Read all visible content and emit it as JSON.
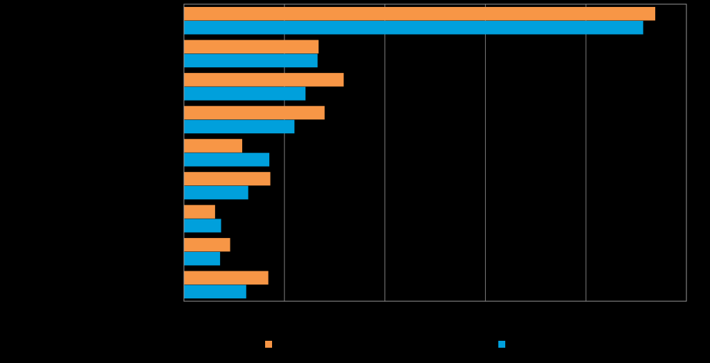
{
  "chart_data": {
    "type": "bar",
    "orientation": "horizontal",
    "title": "",
    "xlabel": "",
    "ylabel": "",
    "categories": [
      "",
      "",
      "",
      "",
      "",
      "",
      "",
      "",
      ""
    ],
    "xlim": [
      0,
      5
    ],
    "grid": true,
    "legend_position": "bottom",
    "series": [
      {
        "values": [
          4.69,
          1.34,
          1.59,
          1.4,
          0.58,
          0.86,
          0.31,
          0.46,
          0.84
        ],
        "color": "#F79646"
      },
      {
        "values": [
          4.57,
          1.33,
          1.21,
          1.1,
          0.85,
          0.64,
          0.37,
          0.36,
          0.62
        ],
        "color": "#00A0DC"
      }
    ],
    "colors": {
      "background": "#000000",
      "axis": "#9a9a9a",
      "grid": "#7f7f7f"
    }
  }
}
